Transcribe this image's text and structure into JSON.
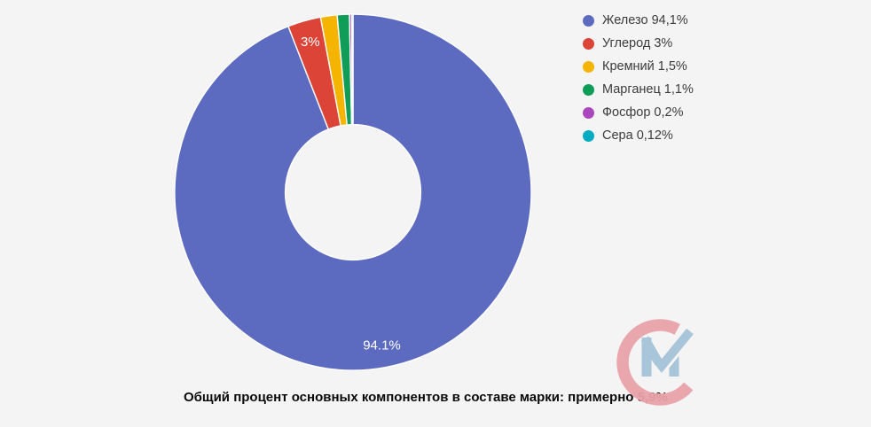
{
  "page": {
    "background": "#f4f4f4"
  },
  "chart_data": {
    "type": "pie",
    "donut": true,
    "hole_ratio": 0.38,
    "start_angle_deg": 0,
    "direction": "clockwise",
    "legend_position": "right",
    "slice_label_color": "#ffffff",
    "series": [
      {
        "name": "Железо",
        "value": 94.1,
        "color": "#5C6BC0",
        "legend_label": "Железо 94,1%",
        "slice_label": "94.1%"
      },
      {
        "name": "Углерод",
        "value": 3,
        "color": "#DB4437",
        "legend_label": "Углерод 3%",
        "slice_label": "3%"
      },
      {
        "name": "Кремний",
        "value": 1.5,
        "color": "#F4B400",
        "legend_label": "Кремний 1,5%",
        "slice_label": ""
      },
      {
        "name": "Марганец",
        "value": 1.1,
        "color": "#0F9D58",
        "legend_label": "Марганец 1,1%",
        "slice_label": ""
      },
      {
        "name": "Фосфор",
        "value": 0.2,
        "color": "#AB47BC",
        "legend_label": "Фосфор 0,2%",
        "slice_label": ""
      },
      {
        "name": "Сера",
        "value": 0.12,
        "color": "#00ACC1",
        "legend_label": "Сера 0,12%",
        "slice_label": ""
      }
    ]
  },
  "caption": "Общий процент основных компонентов в составе марки: примерно 5,9%",
  "logo": {
    "ring_color": "#E9A3AA",
    "mark_color": "#A6C3D9"
  }
}
